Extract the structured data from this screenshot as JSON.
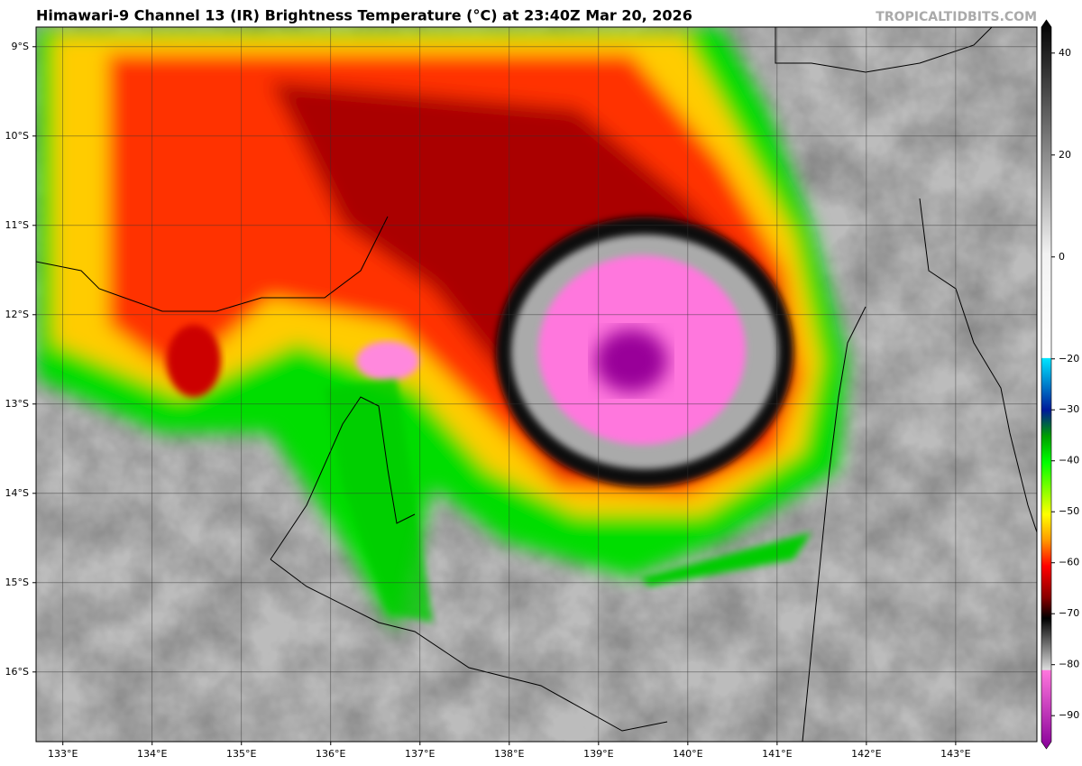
{
  "header": {
    "title": "Himawari-9 Channel 13 (IR) Brightness Temperature (°C) at 23:40Z Mar 20, 2026",
    "watermark": "TROPICALTIDBITS.COM"
  },
  "map": {
    "lon_range": [
      132.7,
      143.91
    ],
    "lat_range": [
      -8.78,
      -16.78
    ],
    "grid": true,
    "lon_ticks": [
      {
        "value": 133,
        "label": "133°E"
      },
      {
        "value": 134,
        "label": "134°E"
      },
      {
        "value": 135,
        "label": "135°E"
      },
      {
        "value": 136,
        "label": "136°E"
      },
      {
        "value": 137,
        "label": "137°E"
      },
      {
        "value": 138,
        "label": "138°E"
      },
      {
        "value": 139,
        "label": "139°E"
      },
      {
        "value": 140,
        "label": "140°E"
      },
      {
        "value": 141,
        "label": "141°E"
      },
      {
        "value": 142,
        "label": "142°E"
      },
      {
        "value": 143,
        "label": "143°E"
      }
    ],
    "lat_ticks": [
      {
        "value": -9,
        "label": "9°S"
      },
      {
        "value": -10,
        "label": "10°S"
      },
      {
        "value": -11,
        "label": "11°S"
      },
      {
        "value": -12,
        "label": "12°S"
      },
      {
        "value": -13,
        "label": "13°S"
      },
      {
        "value": -14,
        "label": "14°S"
      },
      {
        "value": -15,
        "label": "15°S"
      },
      {
        "value": -16,
        "label": "16°S"
      }
    ]
  },
  "colorbar": {
    "range": [
      45.1,
      -95.1
    ],
    "ticks": [
      40,
      20,
      0,
      {
        "value": -20,
        "label": "−20"
      },
      {
        "value": -30,
        "label": "−30"
      },
      {
        "value": -40,
        "label": "−40"
      },
      {
        "value": -50,
        "label": "−50"
      },
      {
        "value": -60,
        "label": "−60"
      },
      {
        "value": -70,
        "label": "−70"
      },
      {
        "value": -80,
        "label": "−80"
      },
      {
        "value": -90,
        "label": "−90"
      }
    ],
    "stops": [
      [
        45.1,
        "#000000"
      ],
      [
        40,
        "#1a1a1a"
      ],
      [
        0,
        "#f2f2f2"
      ],
      [
        -19.9,
        "#ffffff"
      ],
      [
        -20,
        "#00e5ff"
      ],
      [
        -30,
        "#001a99"
      ],
      [
        -35,
        "#00a000"
      ],
      [
        -40,
        "#00ff00"
      ],
      [
        -50,
        "#ffff00"
      ],
      [
        -55,
        "#ff9900"
      ],
      [
        -60,
        "#ff0000"
      ],
      [
        -66,
        "#880000"
      ],
      [
        -70,
        "#000000"
      ],
      [
        -79.9,
        "#dddddd"
      ],
      [
        -80,
        "#ff77dd"
      ],
      [
        -95.1,
        "#880099"
      ]
    ]
  }
}
